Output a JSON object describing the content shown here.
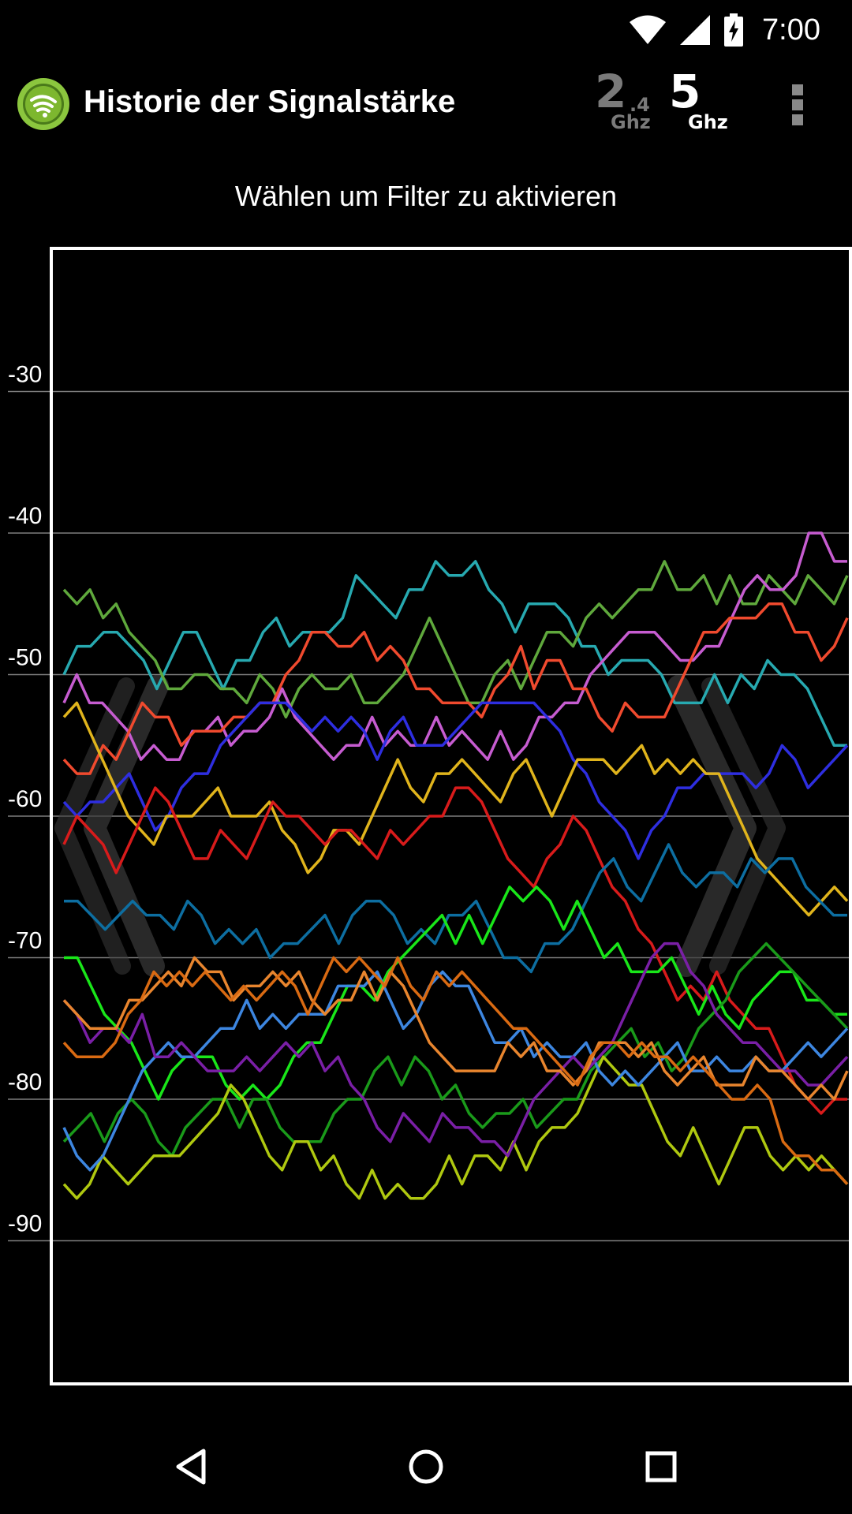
{
  "status_bar": {
    "time": "7:00",
    "icons": [
      "wifi-icon",
      "cell-signal-icon",
      "battery-charging-icon"
    ]
  },
  "app_bar": {
    "title": "Historie der Signalstärke",
    "logo_icon": "wifi-logo-icon",
    "band_24": {
      "big": "2",
      "small": ".4",
      "unit": "Ghz",
      "active": false
    },
    "band_5": {
      "big": "5",
      "unit": "Ghz",
      "active": true
    },
    "overflow_icon": "overflow-menu-icon"
  },
  "filter_hint": "Wählen um Filter zu aktivieren",
  "chart_data": {
    "type": "line",
    "ylim": [
      -100,
      -20
    ],
    "xlim": [
      0,
      70
    ],
    "y_ticks": [
      -30,
      -40,
      -50,
      -60,
      -70,
      -80,
      -90
    ],
    "y_tick_labels": [
      "-30",
      "-40",
      "-50",
      "-60",
      "-70",
      "-80",
      "-90"
    ],
    "grid": true,
    "legend": "none",
    "series": [
      {
        "color": "#27A9B0",
        "values": [
          -50,
          -48,
          -48,
          -47,
          -47,
          -48,
          -49,
          -51,
          -49,
          -47,
          -47,
          -49,
          -51,
          -49,
          -49,
          -47,
          -46,
          -48,
          -47,
          -47,
          -47,
          -46,
          -43,
          -44,
          -45,
          -46,
          -44,
          -44,
          -42,
          -43,
          -43,
          -42,
          -44,
          -45,
          -47,
          -45,
          -45,
          -45,
          -46,
          -48,
          -48,
          -50,
          -49,
          -49,
          -49,
          -50,
          -52,
          -52,
          -52,
          -50,
          -52,
          -50,
          -51,
          -49,
          -50,
          -50,
          -51,
          -53,
          -55,
          -55
        ]
      },
      {
        "color": "#5FA83C",
        "values": [
          -44,
          -45,
          -44,
          -46,
          -45,
          -47,
          -48,
          -49,
          -51,
          -51,
          -50,
          -50,
          -51,
          -51,
          -52,
          -50,
          -51,
          -53,
          -51,
          -50,
          -51,
          -51,
          -50,
          -52,
          -52,
          -51,
          -50,
          -48,
          -46,
          -48,
          -50,
          -52,
          -52,
          -50,
          -49,
          -51,
          -49,
          -47,
          -47,
          -48,
          -46,
          -45,
          -46,
          -45,
          -44,
          -44,
          -42,
          -44,
          -44,
          -43,
          -45,
          -43,
          -45,
          -45,
          -43,
          -44,
          -45,
          -43,
          -44,
          -45,
          -43
        ]
      },
      {
        "color": "#C65CD0",
        "values": [
          -52,
          -50,
          -52,
          -52,
          -53,
          -54,
          -56,
          -55,
          -56,
          -56,
          -54,
          -54,
          -53,
          -55,
          -54,
          -54,
          -53,
          -51,
          -53,
          -54,
          -55,
          -56,
          -55,
          -55,
          -53,
          -55,
          -54,
          -55,
          -55,
          -53,
          -55,
          -54,
          -55,
          -56,
          -54,
          -56,
          -55,
          -53,
          -53,
          -52,
          -52,
          -50,
          -49,
          -48,
          -47,
          -47,
          -47,
          -48,
          -49,
          -49,
          -48,
          -48,
          -46,
          -44,
          -43,
          -44,
          -44,
          -43,
          -40,
          -40,
          -42,
          -42
        ]
      },
      {
        "color": "#F04A2E",
        "values": [
          -56,
          -57,
          -57,
          -55,
          -56,
          -54,
          -52,
          -53,
          -53,
          -55,
          -54,
          -54,
          -54,
          -53,
          -53,
          -52,
          -52,
          -50,
          -49,
          -47,
          -47,
          -48,
          -48,
          -47,
          -49,
          -48,
          -49,
          -51,
          -51,
          -52,
          -52,
          -52,
          -53,
          -51,
          -50,
          -48,
          -51,
          -49,
          -49,
          -51,
          -51,
          -53,
          -54,
          -52,
          -53,
          -53,
          -53,
          -51,
          -49,
          -47,
          -47,
          -46,
          -46,
          -46,
          -45,
          -45,
          -47,
          -47,
          -49,
          -48,
          -46
        ]
      },
      {
        "color": "#2E2EE0",
        "values": [
          -59,
          -60,
          -59,
          -59,
          -58,
          -57,
          -59,
          -61,
          -60,
          -58,
          -57,
          -57,
          -55,
          -54,
          -53,
          -52,
          -52,
          -52,
          -53,
          -54,
          -53,
          -54,
          -53,
          -54,
          -56,
          -54,
          -53,
          -55,
          -55,
          -55,
          -54,
          -53,
          -52,
          -52,
          -52,
          -52,
          -52,
          -53,
          -54,
          -56,
          -57,
          -59,
          -60,
          -61,
          -63,
          -61,
          -60,
          -58,
          -58,
          -57,
          -57,
          -57,
          -57,
          -58,
          -57,
          -55,
          -56,
          -58,
          -57,
          -56,
          -55
        ]
      },
      {
        "color": "#E0B41C",
        "values": [
          -53,
          -52,
          -54,
          -56,
          -58,
          -60,
          -61,
          -62,
          -60,
          -60,
          -60,
          -59,
          -58,
          -60,
          -60,
          -60,
          -59,
          -61,
          -62,
          -64,
          -63,
          -61,
          -61,
          -62,
          -60,
          -58,
          -56,
          -58,
          -59,
          -57,
          -57,
          -56,
          -57,
          -58,
          -59,
          -57,
          -56,
          -58,
          -60,
          -58,
          -56,
          -56,
          -56,
          -57,
          -56,
          -55,
          -57,
          -56,
          -57,
          -56,
          -57,
          -57,
          -59,
          -61,
          -63,
          -64,
          -65,
          -66,
          -67,
          -66,
          -65,
          -66
        ]
      },
      {
        "color": "#D81B1B",
        "values": [
          -62,
          -60,
          -61,
          -62,
          -64,
          -62,
          -60,
          -58,
          -59,
          -61,
          -63,
          -63,
          -61,
          -62,
          -63,
          -61,
          -59,
          -60,
          -60,
          -61,
          -62,
          -61,
          -61,
          -62,
          -63,
          -61,
          -62,
          -61,
          -60,
          -60,
          -58,
          -58,
          -59,
          -61,
          -63,
          -64,
          -65,
          -63,
          -62,
          -60,
          -61,
          -63,
          -65,
          -66,
          -68,
          -69,
          -71,
          -73,
          -72,
          -73,
          -71,
          -73,
          -74,
          -75,
          -75,
          -77,
          -79,
          -80,
          -81,
          -80,
          -80
        ]
      },
      {
        "color": "#0D6EA1",
        "values": [
          -66,
          -66,
          -67,
          -68,
          -67,
          -66,
          -67,
          -67,
          -68,
          -66,
          -67,
          -69,
          -68,
          -69,
          -68,
          -70,
          -69,
          -69,
          -68,
          -67,
          -69,
          -67,
          -66,
          -66,
          -67,
          -69,
          -68,
          -69,
          -67,
          -67,
          -66,
          -68,
          -70,
          -70,
          -71,
          -69,
          -69,
          -68,
          -66,
          -64,
          -63,
          -65,
          -66,
          -64,
          -62,
          -64,
          -65,
          -64,
          -64,
          -65,
          -63,
          -64,
          -63,
          -63,
          -65,
          -66,
          -67,
          -67
        ]
      },
      {
        "color": "#19E619",
        "values": [
          -70,
          -70,
          -72,
          -74,
          -75,
          -76,
          -78,
          -80,
          -78,
          -77,
          -77,
          -77,
          -79,
          -80,
          -79,
          -80,
          -79,
          -77,
          -76,
          -76,
          -74,
          -72,
          -72,
          -73,
          -71,
          -70,
          -69,
          -68,
          -67,
          -69,
          -67,
          -69,
          -67,
          -65,
          -66,
          -65,
          -66,
          -68,
          -66,
          -68,
          -70,
          -69,
          -71,
          -71,
          -71,
          -70,
          -72,
          -74,
          -72,
          -74,
          -75,
          -73,
          -72,
          -71,
          -71,
          -73,
          -73,
          -74,
          -74
        ]
      },
      {
        "color": "#1A9A1A",
        "values": [
          -83,
          -82,
          -81,
          -83,
          -81,
          -80,
          -81,
          -83,
          -84,
          -82,
          -81,
          -80,
          -80,
          -82,
          -80,
          -80,
          -82,
          -83,
          -83,
          -83,
          -81,
          -80,
          -80,
          -78,
          -77,
          -79,
          -77,
          -78,
          -80,
          -79,
          -81,
          -82,
          -81,
          -81,
          -80,
          -82,
          -81,
          -80,
          -80,
          -78,
          -77,
          -76,
          -75,
          -77,
          -76,
          -78,
          -77,
          -75,
          -74,
          -73,
          -71,
          -70,
          -69,
          -70,
          -71,
          -72,
          -73,
          -74,
          -75
        ]
      },
      {
        "color": "#AFC810",
        "values": [
          -86,
          -87,
          -86,
          -84,
          -85,
          -86,
          -85,
          -84,
          -84,
          -84,
          -83,
          -82,
          -81,
          -79,
          -80,
          -82,
          -84,
          -85,
          -83,
          -83,
          -85,
          -84,
          -86,
          -87,
          -85,
          -87,
          -86,
          -87,
          -87,
          -86,
          -84,
          -86,
          -84,
          -84,
          -85,
          -83,
          -85,
          -83,
          -82,
          -82,
          -81,
          -79,
          -77,
          -78,
          -79,
          -79,
          -81,
          -83,
          -84,
          -82,
          -84,
          -86,
          -84,
          -82,
          -82,
          -84,
          -85,
          -84,
          -85,
          -84,
          -85,
          -86
        ]
      },
      {
        "color": "#3D86E0",
        "values": [
          -82,
          -84,
          -85,
          -84,
          -82,
          -80,
          -78,
          -77,
          -76,
          -77,
          -77,
          -76,
          -75,
          -75,
          -73,
          -75,
          -74,
          -75,
          -74,
          -74,
          -74,
          -72,
          -72,
          -72,
          -71,
          -73,
          -75,
          -74,
          -72,
          -71,
          -72,
          -72,
          -74,
          -76,
          -76,
          -75,
          -77,
          -76,
          -77,
          -77,
          -76,
          -78,
          -79,
          -78,
          -79,
          -78,
          -77,
          -76,
          -78,
          -78,
          -77,
          -78,
          -78,
          -77,
          -78,
          -78,
          -77,
          -76,
          -77,
          -76,
          -75
        ]
      },
      {
        "color": "#7A1FA6",
        "values": [
          -73,
          -74,
          -76,
          -75,
          -75,
          -76,
          -74,
          -77,
          -77,
          -76,
          -77,
          -78,
          -78,
          -78,
          -77,
          -78,
          -77,
          -76,
          -77,
          -76,
          -78,
          -77,
          -79,
          -80,
          -82,
          -83,
          -81,
          -82,
          -83,
          -81,
          -82,
          -82,
          -83,
          -83,
          -84,
          -82,
          -80,
          -79,
          -78,
          -77,
          -78,
          -77,
          -76,
          -74,
          -72,
          -70,
          -69,
          -69,
          -71,
          -72,
          -74,
          -75,
          -76,
          -76,
          -77,
          -78,
          -78,
          -79,
          -79,
          -78,
          -77
        ]
      },
      {
        "color": "#E8852E",
        "values": [
          -73,
          -74,
          -75,
          -75,
          -75,
          -73,
          -73,
          -72,
          -71,
          -72,
          -70,
          -71,
          -71,
          -73,
          -72,
          -72,
          -71,
          -72,
          -71,
          -73,
          -74,
          -73,
          -73,
          -71,
          -73,
          -71,
          -72,
          -74,
          -76,
          -77,
          -78,
          -78,
          -78,
          -78,
          -76,
          -77,
          -76,
          -78,
          -78,
          -79,
          -78,
          -76,
          -76,
          -76,
          -77,
          -76,
          -78,
          -79,
          -78,
          -77,
          -79,
          -79,
          -79,
          -77,
          -78,
          -78,
          -79,
          -80,
          -79,
          -80,
          -78
        ]
      },
      {
        "color": "#D96A12",
        "values": [
          -76,
          -77,
          -77,
          -77,
          -76,
          -74,
          -73,
          -71,
          -72,
          -71,
          -72,
          -71,
          -72,
          -73,
          -72,
          -73,
          -72,
          -71,
          -72,
          -74,
          -72,
          -70,
          -71,
          -70,
          -71,
          -72,
          -70,
          -72,
          -73,
          -71,
          -72,
          -71,
          -72,
          -73,
          -74,
          -75,
          -75,
          -76,
          -77,
          -78,
          -79,
          -77,
          -76,
          -76,
          -77,
          -76,
          -77,
          -77,
          -78,
          -77,
          -78,
          -79,
          -80,
          -80,
          -79,
          -80,
          -83,
          -84,
          -84,
          -85,
          -85,
          -86
        ]
      }
    ]
  },
  "nav_bar": {
    "back_icon": "back-triangle-icon",
    "home_icon": "home-circle-icon",
    "recents_icon": "recents-square-icon"
  }
}
